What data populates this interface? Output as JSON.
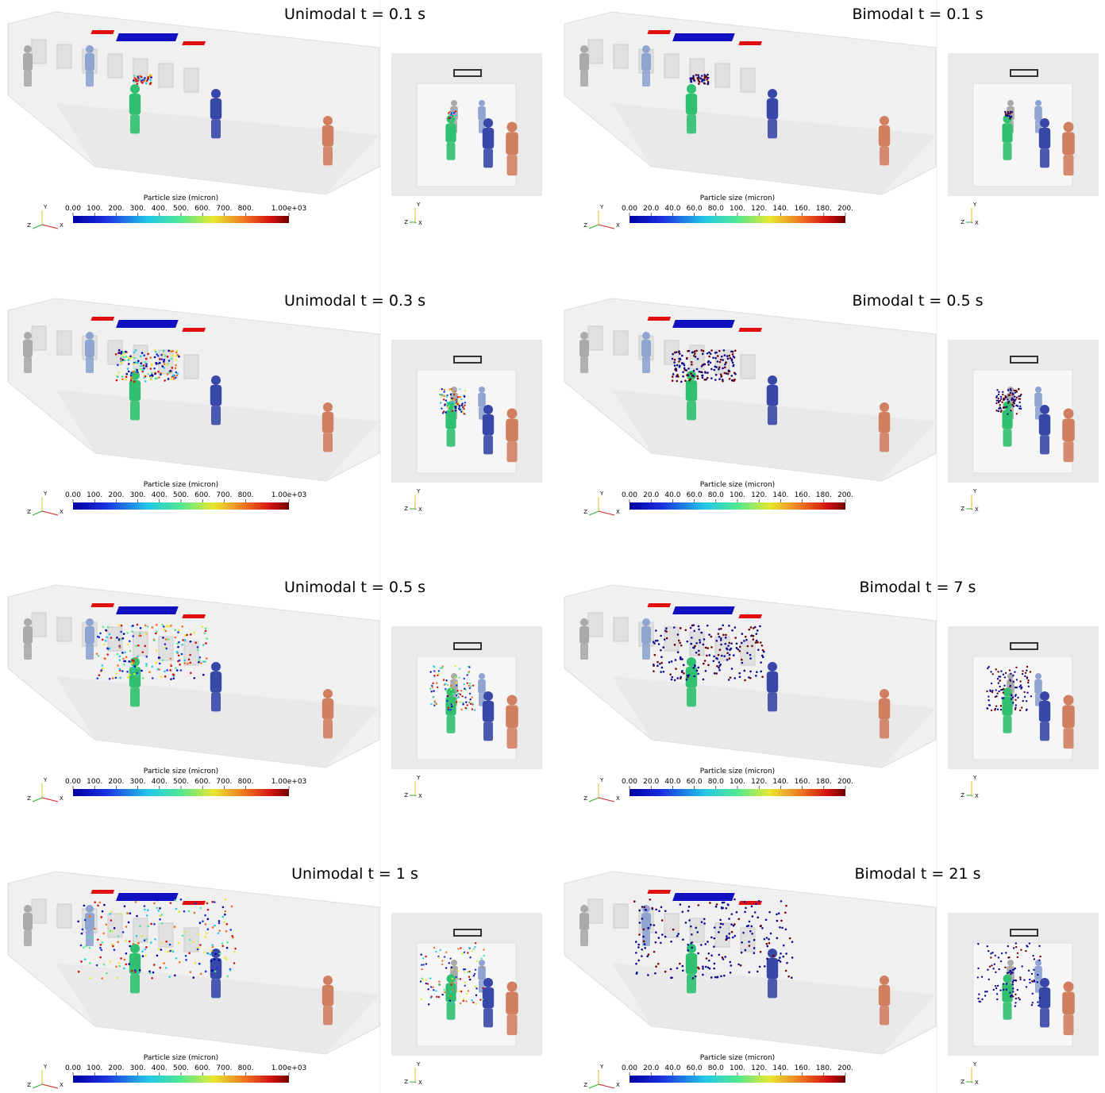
{
  "columns": [
    {
      "panels": [
        {
          "title": "Unimodal t = 0.1 s"
        },
        {
          "title": "Unimodal t = 0.3 s"
        },
        {
          "title": "Unimodal t = 0.5 s"
        },
        {
          "title": "Unimodal t = 1 s"
        }
      ],
      "colorbar": {
        "label": "Particle size (micron)",
        "range": [
          0,
          1000
        ],
        "ticks": [
          {
            "value": 0,
            "label": "0.00"
          },
          {
            "value": 100,
            "label": "100."
          },
          {
            "value": 200,
            "label": "200."
          },
          {
            "value": 300,
            "label": "300."
          },
          {
            "value": 400,
            "label": "400."
          },
          {
            "value": 500,
            "label": "500."
          },
          {
            "value": 600,
            "label": "600."
          },
          {
            "value": 700,
            "label": "700."
          },
          {
            "value": 800,
            "label": "800."
          },
          {
            "value": 1000,
            "label": "1.00e+03"
          }
        ]
      }
    },
    {
      "panels": [
        {
          "title": "Bimodal t = 0.1 s"
        },
        {
          "title": "Bimodal t = 0.5 s"
        },
        {
          "title": "Bimodal t = 7 s"
        },
        {
          "title": "Bimodal t = 21 s"
        }
      ],
      "colorbar": {
        "label": "Particle size (micron)",
        "range": [
          0,
          200
        ],
        "ticks": [
          {
            "value": 0,
            "label": "0.00"
          },
          {
            "value": 20,
            "label": "20.0"
          },
          {
            "value": 40,
            "label": "40.0"
          },
          {
            "value": 60,
            "label": "60.0"
          },
          {
            "value": 80,
            "label": "80.0"
          },
          {
            "value": 100,
            "label": "100."
          },
          {
            "value": 120,
            "label": "120."
          },
          {
            "value": 140,
            "label": "140."
          },
          {
            "value": 160,
            "label": "160."
          },
          {
            "value": 180,
            "label": "180."
          },
          {
            "value": 200,
            "label": "200."
          }
        ]
      }
    }
  ],
  "axes_labels": {
    "y": "Y",
    "z": "Z",
    "x": "X"
  }
}
